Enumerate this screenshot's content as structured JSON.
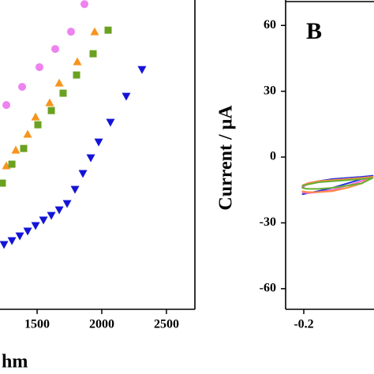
{
  "chart_data": [
    {
      "type": "scatter",
      "x_label": "hm",
      "xlim": [
        1213,
        2720
      ],
      "xticks": [
        1500,
        2000,
        2500
      ],
      "ylim": [
        0,
        2400
      ],
      "series": [
        {
          "color": "#ee82ee",
          "marker": "circle",
          "x": [
            1262,
            1384,
            1518,
            1640,
            1762,
            1866
          ],
          "values": [
            1585,
            1726,
            1879,
            2020,
            2154,
            2368
          ]
        },
        {
          "color": "#f7941d",
          "marker": "triangle-up",
          "x": [
            1262,
            1335,
            1427,
            1488,
            1597,
            1671,
            1811,
            1945
          ],
          "values": [
            1114,
            1236,
            1359,
            1493,
            1603,
            1756,
            1922,
            2154
          ]
        },
        {
          "color": "#6aa121",
          "marker": "square",
          "x": [
            1231,
            1305,
            1396,
            1506,
            1610,
            1701,
            1805,
            1933,
            2049
          ],
          "values": [
            979,
            1126,
            1248,
            1432,
            1542,
            1677,
            1818,
            1983,
            2166
          ]
        },
        {
          "color": "#1414d8",
          "marker": "triangle-down",
          "x": [
            1244,
            1305,
            1366,
            1427,
            1488,
            1549,
            1610,
            1671,
            1732,
            1793,
            1854,
            1915,
            1976,
            2067,
            2189,
            2311
          ],
          "values": [
            502,
            532,
            569,
            606,
            649,
            692,
            728,
            771,
            820,
            930,
            1053,
            1175,
            1297,
            1450,
            1652,
            1860
          ]
        }
      ]
    },
    {
      "type": "line",
      "annotation": "B",
      "y_label": "Current / μA",
      "xlim": [
        -0.25,
        0.1
      ],
      "xticks": [
        -0.2
      ],
      "ylim": [
        -69.4,
        71.6
      ],
      "yticks": [
        60,
        30,
        0,
        -30,
        -60
      ],
      "series": [
        {
          "color": "#2233dd",
          "x": [
            -0.205,
            -0.19,
            -0.16,
            -0.12,
            -0.08,
            -0.04,
            -0.01,
            -0.04,
            -0.08,
            -0.12,
            -0.16,
            -0.19,
            -0.205
          ],
          "values": [
            -14,
            -12,
            -11,
            -10,
            -9.5,
            -9,
            -8.5,
            -10,
            -12,
            -14,
            -15.5,
            -16.5,
            -17
          ]
        },
        {
          "color": "#ff66cc",
          "x": [
            -0.205,
            -0.19,
            -0.16,
            -0.12,
            -0.08,
            -0.04,
            -0.01,
            -0.04,
            -0.08,
            -0.12,
            -0.16,
            -0.19,
            -0.205
          ],
          "values": [
            -13.5,
            -12.5,
            -11.5,
            -10.5,
            -10,
            -9.5,
            -9,
            -11,
            -13,
            -15,
            -16,
            -16.5,
            -16
          ]
        },
        {
          "color": "#ff8c42",
          "x": [
            -0.205,
            -0.19,
            -0.16,
            -0.12,
            -0.08,
            -0.04,
            -0.01,
            -0.04,
            -0.08,
            -0.12,
            -0.16,
            -0.19,
            -0.205
          ],
          "values": [
            -13,
            -12,
            -11,
            -10.5,
            -10,
            -9.5,
            -9,
            -12,
            -14,
            -15.5,
            -16,
            -16,
            -15.5
          ]
        },
        {
          "color": "#66b032",
          "x": [
            -0.205,
            -0.19,
            -0.16,
            -0.12,
            -0.08,
            -0.04,
            -0.01,
            -0.04,
            -0.08,
            -0.12,
            -0.16,
            -0.19,
            -0.205
          ],
          "values": [
            -13,
            -12.5,
            -11.5,
            -11,
            -10.5,
            -10,
            -9.5,
            -12,
            -13,
            -14,
            -14.5,
            -14.5,
            -14
          ]
        }
      ]
    }
  ]
}
